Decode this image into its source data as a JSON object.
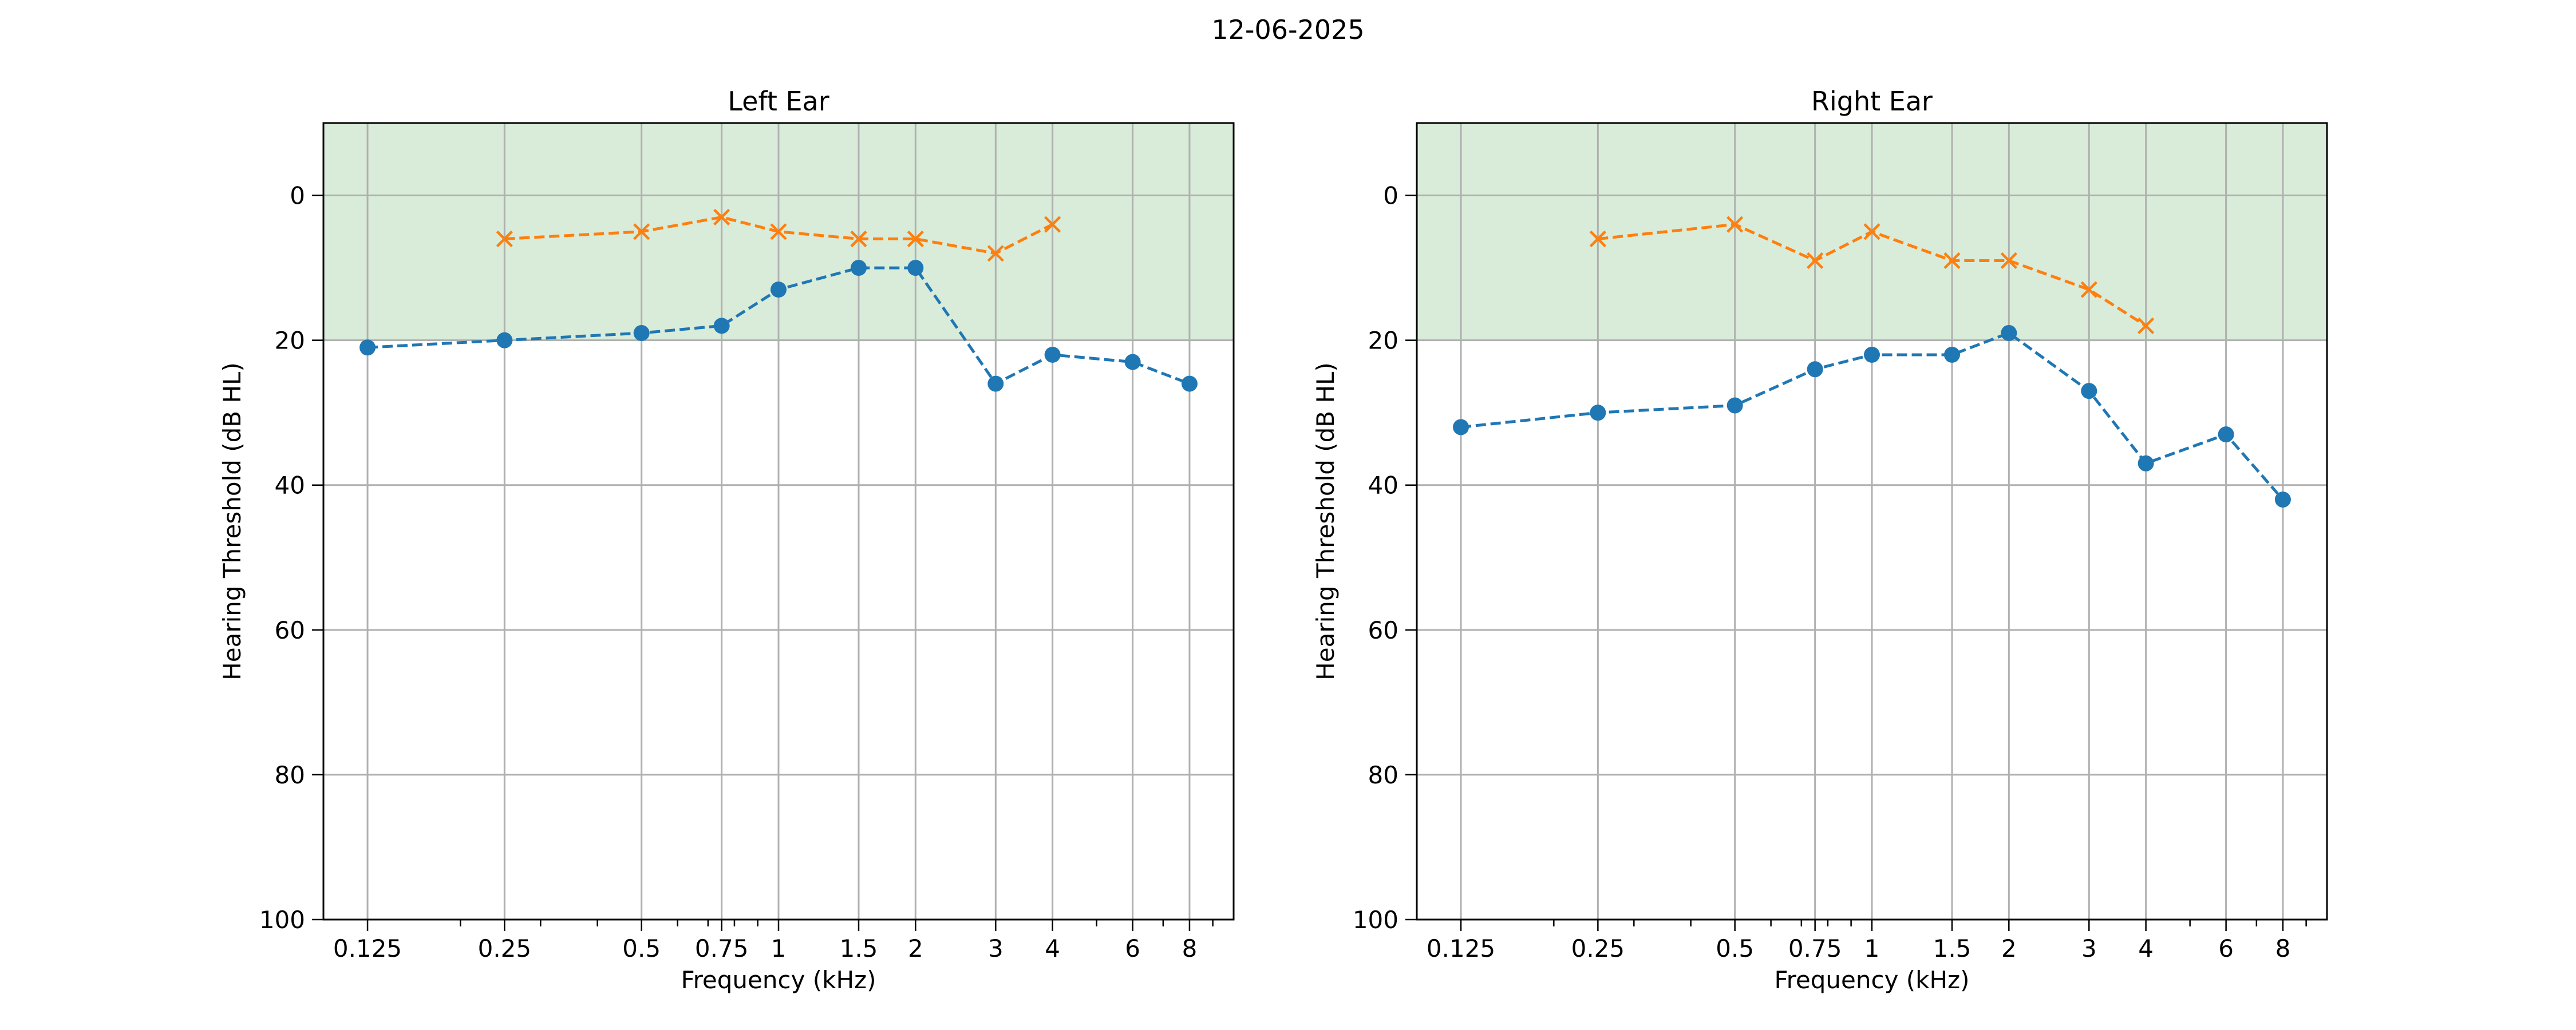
{
  "figure": {
    "title": "12-06-2025"
  },
  "colors": {
    "normal_band": "#d9ecd9",
    "grid": "#b0b0b0",
    "series_air": "#1f77b4",
    "series_bone": "#ff7f0e"
  },
  "chart_data": [
    {
      "type": "line",
      "title": "Left Ear",
      "xlabel": "Frequency (kHz)",
      "ylabel": "Hearing Threshold (dB HL)",
      "xscale": "log",
      "xlim": [
        0.1,
        10
      ],
      "ylim": [
        100,
        -10
      ],
      "y_inverted": true,
      "xticks": [
        0.125,
        0.25,
        0.5,
        0.75,
        1,
        1.5,
        2,
        3,
        4,
        6,
        8
      ],
      "xtick_labels": [
        "0.125",
        "0.25",
        "0.5",
        "0.75",
        "1",
        "1.5",
        "2",
        "3",
        "4",
        "6",
        "8"
      ],
      "yticks": [
        0,
        20,
        40,
        60,
        80,
        100
      ],
      "ytick_labels": [
        "0",
        "20",
        "40",
        "60",
        "80",
        "100"
      ],
      "grid": true,
      "shaded_band": [
        -10,
        20
      ],
      "series": [
        {
          "marker": "circle",
          "line_style": "dashed",
          "color": "#1f77b4",
          "x": [
            0.125,
            0.25,
            0.5,
            0.75,
            1,
            1.5,
            2,
            3,
            4,
            6,
            8
          ],
          "y": [
            21,
            20,
            19,
            18,
            13,
            10,
            10,
            26,
            22,
            23,
            26
          ]
        },
        {
          "marker": "x",
          "line_style": "dashed",
          "color": "#ff7f0e",
          "x": [
            0.25,
            0.5,
            0.75,
            1,
            1.5,
            2,
            3,
            4
          ],
          "y": [
            6,
            5,
            3,
            5,
            6,
            6,
            8,
            4
          ]
        }
      ]
    },
    {
      "type": "line",
      "title": "Right Ear",
      "xlabel": "Frequency (kHz)",
      "ylabel": "Hearing Threshold (dB HL)",
      "xscale": "log",
      "xlim": [
        0.1,
        10
      ],
      "ylim": [
        100,
        -10
      ],
      "y_inverted": true,
      "xticks": [
        0.125,
        0.25,
        0.5,
        0.75,
        1,
        1.5,
        2,
        3,
        4,
        6,
        8
      ],
      "xtick_labels": [
        "0.125",
        "0.25",
        "0.5",
        "0.75",
        "1",
        "1.5",
        "2",
        "3",
        "4",
        "6",
        "8"
      ],
      "yticks": [
        0,
        20,
        40,
        60,
        80,
        100
      ],
      "ytick_labels": [
        "0",
        "20",
        "40",
        "60",
        "80",
        "100"
      ],
      "grid": true,
      "shaded_band": [
        -10,
        20
      ],
      "series": [
        {
          "marker": "circle",
          "line_style": "dashed",
          "color": "#1f77b4",
          "x": [
            0.125,
            0.25,
            0.5,
            0.75,
            1,
            1.5,
            2,
            3,
            4,
            6,
            8
          ],
          "y": [
            32,
            30,
            29,
            24,
            22,
            22,
            19,
            27,
            37,
            33,
            42
          ]
        },
        {
          "marker": "x",
          "line_style": "dashed",
          "color": "#ff7f0e",
          "x": [
            0.25,
            0.5,
            0.75,
            1,
            1.5,
            2,
            3,
            4
          ],
          "y": [
            6,
            4,
            9,
            5,
            9,
            9,
            13,
            18
          ]
        }
      ]
    }
  ]
}
